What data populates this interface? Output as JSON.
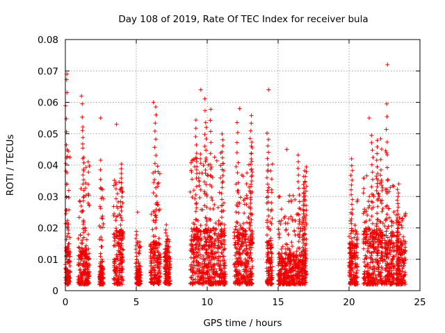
{
  "chart_data": {
    "type": "scatter",
    "title": "Day 108 of 2019, Rate Of TEC Index for receiver bula",
    "xlabel": "GPS time / hours",
    "ylabel": "ROTI / TECUs",
    "xlim": [
      0,
      25
    ],
    "ylim": [
      0,
      0.08
    ],
    "x_ticks": [
      0,
      5,
      10,
      15,
      20,
      25
    ],
    "y_ticks": [
      0,
      0.01,
      0.02,
      0.03,
      0.04,
      0.05,
      0.06,
      0.07,
      0.08
    ],
    "x_tick_labels": [
      "0",
      "5",
      "10",
      "15",
      "20",
      "25"
    ],
    "y_tick_labels": [
      "0",
      "0.01",
      "0.02",
      "0.03",
      "0.04",
      "0.05",
      "0.06",
      "0.07",
      "0.08"
    ],
    "grid": true,
    "marker": "plus",
    "color": "#ee0000",
    "clusters": [
      {
        "x_start": 0.0,
        "x_end": 0.35,
        "dense_max": 0.015,
        "sparse_max": 0.069
      },
      {
        "x_start": 0.9,
        "x_end": 1.7,
        "dense_max": 0.014,
        "sparse_max": 0.062
      },
      {
        "x_start": 2.4,
        "x_end": 2.7,
        "dense_max": 0.008,
        "sparse_max": 0.055
      },
      {
        "x_start": 3.4,
        "x_end": 4.1,
        "dense_max": 0.02,
        "sparse_max": 0.053
      },
      {
        "x_start": 5.0,
        "x_end": 5.3,
        "dense_max": 0.007,
        "sparse_max": 0.025
      },
      {
        "x_start": 6.0,
        "x_end": 6.7,
        "dense_max": 0.016,
        "sparse_max": 0.06
      },
      {
        "x_start": 7.0,
        "x_end": 7.4,
        "dense_max": 0.013,
        "sparse_max": 0.021
      },
      {
        "x_start": 8.8,
        "x_end": 11.3,
        "dense_max": 0.02,
        "sparse_max": 0.064
      },
      {
        "x_start": 11.9,
        "x_end": 13.2,
        "dense_max": 0.02,
        "sparse_max": 0.058
      },
      {
        "x_start": 14.2,
        "x_end": 14.6,
        "dense_max": 0.016,
        "sparse_max": 0.064
      },
      {
        "x_start": 15.0,
        "x_end": 17.0,
        "dense_max": 0.012,
        "sparse_max": 0.045
      },
      {
        "x_start": 20.0,
        "x_end": 20.6,
        "dense_max": 0.015,
        "sparse_max": 0.042
      },
      {
        "x_start": 21.0,
        "x_end": 22.4,
        "dense_max": 0.02,
        "sparse_max": 0.055
      },
      {
        "x_start": 22.5,
        "x_end": 23.2,
        "dense_max": 0.018,
        "sparse_max": 0.072
      },
      {
        "x_start": 23.3,
        "x_end": 24.0,
        "dense_max": 0.016,
        "sparse_max": 0.034
      }
    ]
  }
}
